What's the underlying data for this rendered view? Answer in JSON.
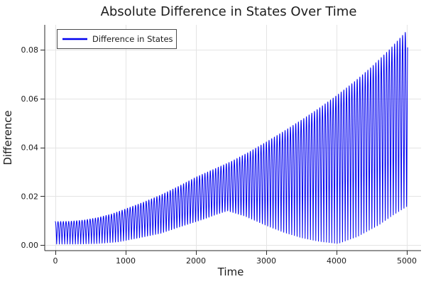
{
  "chart_data": {
    "type": "line",
    "title": "Absolute Difference in States Over Time",
    "xlabel": "Time",
    "ylabel": "Difference",
    "legend_label": "Difference in States",
    "legend_position": "top-left",
    "series_color": "#0000f0",
    "grid": true,
    "x_tick_labels": [
      "0",
      "1000",
      "2000",
      "3000",
      "4000",
      "5000"
    ],
    "x_tick_values": [
      0,
      1000,
      2000,
      3000,
      4000,
      5000
    ],
    "y_tick_labels": [
      "0.00",
      "0.02",
      "0.04",
      "0.06",
      "0.08"
    ],
    "y_tick_values": [
      0,
      0.02,
      0.04,
      0.06,
      0.08
    ],
    "xlim": [
      -151,
      5202
    ],
    "ylim": [
      -0.0023,
      0.0902
    ],
    "oscillation": {
      "description": "rapid absolute-value oscillation between lower and upper envelopes (beat pattern)",
      "folded_period": 38,
      "t_start": 0,
      "t_end": 5011
    },
    "upper_envelope": [
      [
        0,
        0.0096
      ],
      [
        200,
        0.0097
      ],
      [
        400,
        0.0102
      ],
      [
        600,
        0.0112
      ],
      [
        800,
        0.0127
      ],
      [
        1000,
        0.0148
      ],
      [
        1250,
        0.0175
      ],
      [
        1500,
        0.0205
      ],
      [
        1750,
        0.024
      ],
      [
        2000,
        0.0278
      ],
      [
        2250,
        0.031
      ],
      [
        2500,
        0.0342
      ],
      [
        2750,
        0.038
      ],
      [
        3000,
        0.0422
      ],
      [
        3250,
        0.0466
      ],
      [
        3500,
        0.0512
      ],
      [
        3750,
        0.056
      ],
      [
        4000,
        0.0612
      ],
      [
        4250,
        0.0668
      ],
      [
        4500,
        0.073
      ],
      [
        4750,
        0.08
      ],
      [
        5000,
        0.0878
      ],
      [
        5011,
        0.088
      ]
    ],
    "lower_envelope": [
      [
        0,
        0.0004
      ],
      [
        300,
        0.0004
      ],
      [
        600,
        0.0006
      ],
      [
        900,
        0.0013
      ],
      [
        1200,
        0.003
      ],
      [
        1500,
        0.0048
      ],
      [
        1800,
        0.0077
      ],
      [
        2100,
        0.0105
      ],
      [
        2300,
        0.0126
      ],
      [
        2450,
        0.014
      ],
      [
        2700,
        0.0118
      ],
      [
        3000,
        0.008
      ],
      [
        3250,
        0.0052
      ],
      [
        3500,
        0.003
      ],
      [
        3750,
        0.0015
      ],
      [
        4020,
        0.0006
      ],
      [
        4300,
        0.0035
      ],
      [
        4600,
        0.0082
      ],
      [
        4800,
        0.0122
      ],
      [
        5000,
        0.0158
      ],
      [
        5011,
        0.016
      ]
    ]
  }
}
